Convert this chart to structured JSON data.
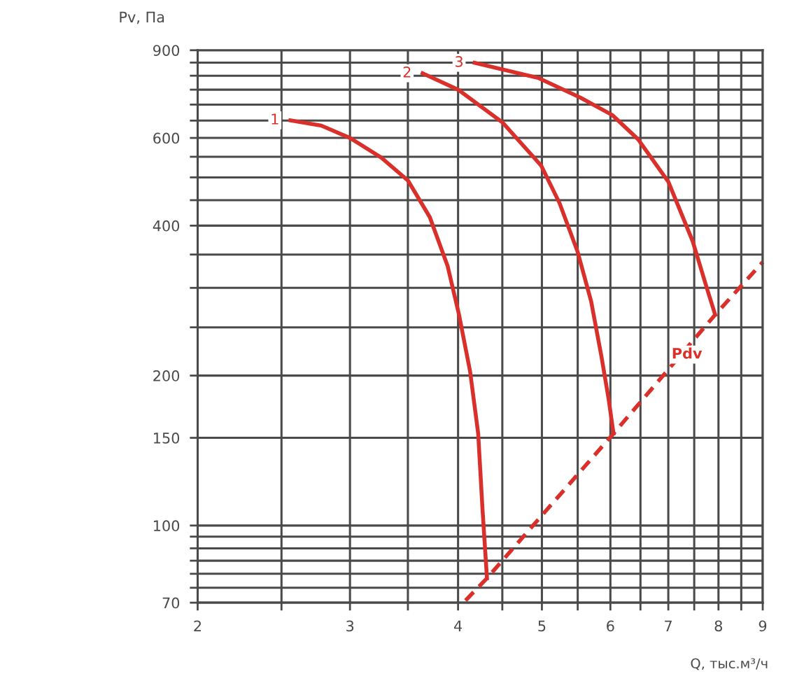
{
  "chart_data": {
    "type": "line",
    "xlabel": "Q, тыс.м³/ч",
    "ylabel": "Pv, Па",
    "log": "xy",
    "grid": true,
    "legend": false,
    "marker": "none",
    "xlim": [
      2,
      9
    ],
    "ylim": [
      70,
      900
    ],
    "xticks": [
      2,
      {
        "value": 2.5,
        "label": null
      },
      3,
      {
        "value": 3.5,
        "label": null
      },
      4,
      {
        "value": 4.5,
        "label": null
      },
      5,
      {
        "value": 5.5,
        "label": null
      },
      6,
      {
        "value": 6.5,
        "label": null
      },
      7,
      {
        "value": 7.5,
        "label": null
      },
      8,
      {
        "value": 8.5,
        "label": null
      },
      9
    ],
    "yticks": [
      70,
      {
        "value": 75,
        "label": null
      },
      {
        "value": 80,
        "label": null
      },
      {
        "value": 85,
        "label": null
      },
      {
        "value": 90,
        "label": null
      },
      {
        "value": 95,
        "label": null
      },
      100,
      150,
      200,
      {
        "value": 250,
        "label": null
      },
      {
        "value": 300,
        "label": null
      },
      {
        "value": 350,
        "label": null
      },
      400,
      {
        "value": 450,
        "label": null
      },
      {
        "value": 500,
        "label": null
      },
      {
        "value": 550,
        "label": null
      },
      600,
      {
        "value": 650,
        "label": null
      },
      {
        "value": 700,
        "label": null
      },
      {
        "value": 750,
        "label": null
      },
      {
        "value": 800,
        "label": null
      },
      {
        "value": 850,
        "label": null
      },
      900
    ],
    "series": [
      {
        "name": "1",
        "color": "#d9302b",
        "line_style": "solid",
        "x": [
          2.56,
          2.78,
          3.0,
          3.26,
          3.5,
          3.71,
          3.89,
          4.01,
          4.13,
          4.22,
          4.27,
          4.32
        ],
        "values": [
          651,
          635,
          600,
          548,
          493,
          416,
          332,
          265,
          204,
          153,
          107,
          78.4
        ]
      },
      {
        "name": "2",
        "color": "#d9302b",
        "line_style": "solid",
        "x": [
          3.64,
          4.0,
          4.5,
          4.99,
          5.24,
          5.5,
          5.7,
          5.86,
          5.97,
          6.05
        ],
        "values": [
          809,
          750,
          645,
          528,
          444,
          354,
          282,
          218,
          180,
          153
        ]
      },
      {
        "name": "3",
        "color": "#d9302b",
        "line_style": "solid",
        "x": [
          4.18,
          4.96,
          5.54,
          6.03,
          6.46,
          7.0,
          7.47,
          7.75,
          7.93
        ],
        "values": [
          849,
          791,
          723,
          667,
          596,
          490,
          372,
          301,
          265
        ]
      },
      {
        "name": "Pdv",
        "color": "#d9302b",
        "line_style": "dashed",
        "x": [
          4.08,
          4.32,
          6.05,
          7.93,
          9
        ],
        "values": [
          70.7,
          78.4,
          153,
          265,
          338
        ]
      }
    ]
  }
}
